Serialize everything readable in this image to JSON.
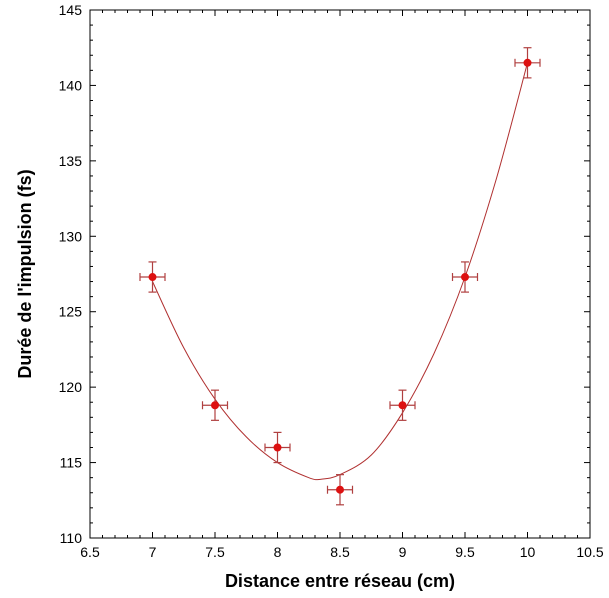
{
  "chart_data": {
    "type": "scatter",
    "title": "",
    "xlabel": "Distance entre réseau (cm)",
    "ylabel": "Durée de l'impulsion (fs)",
    "xlim": [
      6.5,
      10.5
    ],
    "ylim": [
      110,
      145
    ],
    "xticks": [
      6.5,
      7,
      7.5,
      8,
      8.5,
      9,
      9.5,
      10,
      10.5
    ],
    "yticks": [
      110,
      115,
      120,
      125,
      130,
      135,
      140,
      145
    ],
    "xtick_labels": [
      "6.5",
      "7",
      "7.5",
      "8",
      "8.5",
      "9",
      "9.5",
      "10",
      "10.5"
    ],
    "ytick_labels": [
      "110",
      "115",
      "120",
      "125",
      "130",
      "135",
      "140",
      "145"
    ],
    "grid": false,
    "legend": false,
    "series": [
      {
        "points": [
          {
            "x": 7.0,
            "y": 127.3,
            "xerr": 0.1,
            "yerr": 1.0
          },
          {
            "x": 7.5,
            "y": 118.8,
            "xerr": 0.1,
            "yerr": 1.0
          },
          {
            "x": 8.0,
            "y": 116.0,
            "xerr": 0.1,
            "yerr": 1.0
          },
          {
            "x": 8.5,
            "y": 113.2,
            "xerr": 0.1,
            "yerr": 1.0
          },
          {
            "x": 9.0,
            "y": 118.8,
            "xerr": 0.1,
            "yerr": 1.0
          },
          {
            "x": 9.5,
            "y": 127.3,
            "xerr": 0.1,
            "yerr": 1.0
          },
          {
            "x": 10.0,
            "y": 141.5,
            "xerr": 0.1,
            "yerr": 1.0
          }
        ]
      }
    ],
    "fit_curve": [
      {
        "x": 7.0,
        "y": 127.0
      },
      {
        "x": 7.25,
        "y": 122.6
      },
      {
        "x": 7.5,
        "y": 119.2
      },
      {
        "x": 7.75,
        "y": 116.7
      },
      {
        "x": 8.0,
        "y": 115.0
      },
      {
        "x": 8.25,
        "y": 114.0
      },
      {
        "x": 8.35,
        "y": 113.9
      },
      {
        "x": 8.5,
        "y": 114.2
      },
      {
        "x": 8.75,
        "y": 115.5
      },
      {
        "x": 9.0,
        "y": 118.3
      },
      {
        "x": 9.25,
        "y": 122.2
      },
      {
        "x": 9.5,
        "y": 127.3
      },
      {
        "x": 9.75,
        "y": 133.8
      },
      {
        "x": 10.0,
        "y": 141.5
      }
    ],
    "colors": {
      "point": "#dd1111",
      "error_bar": "#b04040",
      "curve": "#b03030",
      "axis": "#000000"
    }
  }
}
